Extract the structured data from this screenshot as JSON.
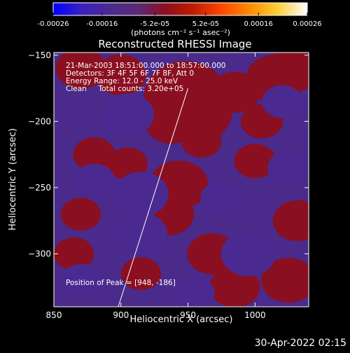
{
  "chart_data": {
    "type": "heatmap",
    "title": "Reconstructed RHESSI Image",
    "xlabel": "Heliocentric X (arcsec)",
    "ylabel": "Heliocentric Y (arcsec)",
    "xlim": [
      850,
      1040
    ],
    "ylim": [
      -340,
      -148
    ],
    "x_ticks": [
      850,
      900,
      950,
      1000
    ],
    "y_ticks": [
      -150,
      -200,
      -250,
      -300
    ],
    "colorbar": {
      "label": "(photons cm⁻² s⁻¹ asec⁻²)",
      "range": [
        -0.00026,
        0.00026
      ],
      "tick_labels": [
        "-0.00026",
        "-0.00016",
        "-5.2e-05",
        "5.2e-05",
        "0.00016",
        "0.00026"
      ],
      "colors": [
        "#0000ff",
        "#3a1fc0",
        "#4a2a90",
        "#5a2a7a",
        "#8a0f20",
        "#c01a00",
        "#ff4400",
        "#ff8800",
        "#ffcc33",
        "#ffffff"
      ]
    },
    "annotations": [
      "21-Mar-2003 18:51:00.000 to 18:57:00.000",
      "Detectors: 3F 4F 5F 6F 7F 8F, Att 0",
      "Energy Range: 12.0 - 25.0 keV",
      "Clean     Total counts: 3.20e+05"
    ],
    "peak_text": "Position of Peak = [948, -186]",
    "peak_position": [
      948,
      -186
    ],
    "limb_line": [
      [
        898,
        -340
      ],
      [
        950,
        -175
      ]
    ],
    "sources": [
      {
        "x": 948,
        "y": -180,
        "intensity": 1.0
      },
      {
        "x": 955,
        "y": -193,
        "intensity": 0.85
      },
      {
        "x": 938,
        "y": -200,
        "intensity": 0.6
      },
      {
        "x": 1015,
        "y": -168,
        "intensity": 0.7
      },
      {
        "x": 1030,
        "y": -160,
        "intensity": 0.6
      },
      {
        "x": 985,
        "y": -178,
        "intensity": 0.5
      },
      {
        "x": 900,
        "y": -165,
        "intensity": 0.5
      },
      {
        "x": 870,
        "y": -160,
        "intensity": 0.5
      },
      {
        "x": 943,
        "y": -248,
        "intensity": 0.7
      },
      {
        "x": 935,
        "y": -270,
        "intensity": 0.55
      },
      {
        "x": 968,
        "y": -300,
        "intensity": 0.5
      },
      {
        "x": 985,
        "y": -325,
        "intensity": 0.5
      },
      {
        "x": 1025,
        "y": -320,
        "intensity": 0.6
      },
      {
        "x": 1032,
        "y": -275,
        "intensity": 0.5
      },
      {
        "x": 1000,
        "y": -230,
        "intensity": 0.45
      },
      {
        "x": 880,
        "y": -225,
        "intensity": 0.45
      },
      {
        "x": 915,
        "y": -315,
        "intensity": 0.4
      },
      {
        "x": 865,
        "y": -300,
        "intensity": 0.4
      },
      {
        "x": 870,
        "y": -270,
        "intensity": 0.4
      },
      {
        "x": 905,
        "y": -232,
        "intensity": 0.4
      },
      {
        "x": 1005,
        "y": -200,
        "intensity": 0.45
      },
      {
        "x": 960,
        "y": -215,
        "intensity": 0.4
      },
      {
        "x": 905,
        "y": -195,
        "intensity": -0.55
      },
      {
        "x": 915,
        "y": -255,
        "intensity": -0.6
      },
      {
        "x": 915,
        "y": -285,
        "intensity": -0.55
      },
      {
        "x": 880,
        "y": -245,
        "intensity": -0.45
      },
      {
        "x": 995,
        "y": -300,
        "intensity": -0.6
      },
      {
        "x": 975,
        "y": -258,
        "intensity": -0.45
      },
      {
        "x": 1025,
        "y": -235,
        "intensity": -0.45
      },
      {
        "x": 955,
        "y": -330,
        "intensity": -0.4
      },
      {
        "x": 1020,
        "y": -185,
        "intensity": -0.4
      },
      {
        "x": 870,
        "y": -320,
        "intensity": -0.4
      }
    ]
  },
  "footer": {
    "timestamp": "30-Apr-2022 02:15"
  }
}
